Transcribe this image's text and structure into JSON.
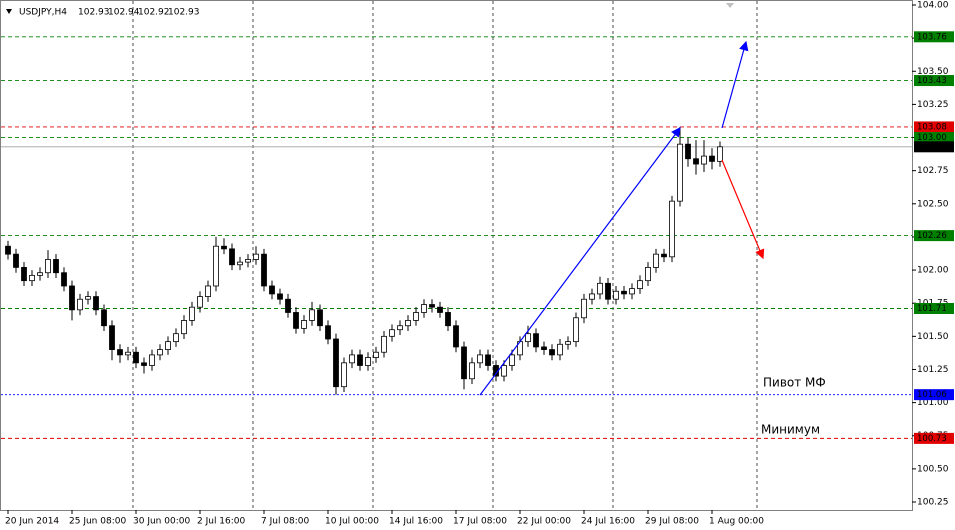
{
  "chart_data": {
    "type": "candlestick",
    "title": "USDJPY,H4",
    "header_values": [
      102.93,
      102.94,
      102.92,
      102.93
    ],
    "annotations": [
      "Пивот МФ",
      "Минимум"
    ],
    "bull_color": "#ffffff",
    "bear_color": "#000000",
    "open": [
      102.18,
      102.12,
      102.02,
      101.92,
      101.96,
      101.98,
      102.08,
      101.98,
      101.88,
      101.7,
      101.78,
      101.8,
      101.7,
      101.58,
      101.4,
      101.36,
      101.38,
      101.3,
      101.28,
      101.36,
      101.4,
      101.46,
      101.52,
      101.62,
      101.72,
      101.8,
      101.88,
      102.18,
      102.16,
      102.04,
      102.06,
      102.08,
      102.12,
      101.88,
      101.82,
      101.78,
      101.68,
      101.56,
      101.62,
      101.7,
      101.58,
      101.48,
      101.12,
      101.3,
      101.36,
      101.28,
      101.34,
      101.38,
      101.5,
      101.55,
      101.58,
      101.62,
      101.68,
      101.74,
      101.72,
      101.68,
      101.58,
      101.42,
      101.18,
      101.3,
      101.36,
      101.28,
      101.2,
      101.28,
      101.36,
      101.46,
      101.52,
      101.42,
      101.4,
      101.36,
      101.44,
      101.46,
      101.64,
      101.78,
      101.82,
      101.9,
      101.78,
      101.84,
      101.82,
      101.86,
      101.92,
      102.02,
      102.12,
      102.1,
      102.52,
      102.95,
      102.84,
      102.8,
      102.86,
      102.82
    ],
    "high": [
      102.22,
      102.16,
      102.06,
      102.0,
      102.02,
      102.15,
      102.12,
      102.02,
      101.92,
      101.82,
      101.84,
      101.84,
      101.74,
      101.62,
      101.44,
      101.42,
      101.42,
      101.34,
      101.4,
      101.44,
      101.5,
      101.56,
      101.66,
      101.76,
      101.84,
      101.92,
      102.25,
      102.24,
      102.2,
      102.1,
      102.12,
      102.18,
      102.16,
      101.92,
      101.86,
      101.82,
      101.72,
      101.66,
      101.76,
      101.74,
      101.62,
      101.52,
      101.34,
      101.4,
      101.4,
      101.38,
      101.42,
      101.54,
      101.59,
      101.62,
      101.66,
      101.72,
      101.78,
      101.78,
      101.76,
      101.72,
      101.62,
      101.46,
      101.34,
      101.4,
      101.4,
      101.32,
      101.32,
      101.4,
      101.5,
      101.58,
      101.56,
      101.46,
      101.44,
      101.48,
      101.5,
      101.68,
      101.82,
      101.86,
      101.95,
      101.94,
      101.88,
      101.88,
      101.9,
      101.96,
      102.06,
      102.16,
      102.16,
      102.56,
      103.08,
      103.0,
      102.98,
      102.98,
      102.92,
      102.97
    ],
    "low": [
      102.08,
      101.98,
      101.88,
      101.88,
      101.92,
      101.94,
      101.94,
      101.84,
      101.62,
      101.66,
      101.74,
      101.66,
      101.54,
      101.32,
      101.3,
      101.32,
      101.26,
      101.22,
      101.24,
      101.32,
      101.36,
      101.42,
      101.48,
      101.58,
      101.68,
      101.76,
      101.84,
      102.12,
      102.0,
      102.0,
      102.02,
      102.04,
      101.84,
      101.78,
      101.74,
      101.64,
      101.52,
      101.52,
      101.58,
      101.54,
      101.44,
      101.06,
      101.08,
      101.26,
      101.24,
      101.24,
      101.3,
      101.34,
      101.46,
      101.51,
      101.54,
      101.58,
      101.64,
      101.68,
      101.64,
      101.54,
      101.38,
      101.1,
      101.14,
      101.26,
      101.24,
      101.16,
      101.16,
      101.24,
      101.32,
      101.42,
      101.38,
      101.36,
      101.32,
      101.32,
      101.4,
      101.42,
      101.6,
      101.74,
      101.78,
      101.74,
      101.74,
      101.78,
      101.78,
      101.82,
      101.88,
      101.98,
      102.06,
      102.06,
      102.48,
      102.78,
      102.72,
      102.74,
      102.76,
      102.78
    ],
    "close": [
      102.12,
      102.02,
      101.92,
      101.96,
      101.98,
      102.08,
      101.98,
      101.88,
      101.7,
      101.78,
      101.8,
      101.7,
      101.58,
      101.4,
      101.36,
      101.38,
      101.3,
      101.28,
      101.36,
      101.4,
      101.46,
      101.52,
      101.62,
      101.72,
      101.8,
      101.88,
      102.18,
      102.16,
      102.04,
      102.06,
      102.08,
      102.12,
      101.88,
      101.82,
      101.78,
      101.68,
      101.56,
      101.62,
      101.7,
      101.58,
      101.48,
      101.12,
      101.3,
      101.36,
      101.28,
      101.34,
      101.38,
      101.5,
      101.55,
      101.58,
      101.62,
      101.68,
      101.74,
      101.72,
      101.68,
      101.58,
      101.42,
      101.18,
      101.3,
      101.36,
      101.28,
      101.2,
      101.28,
      101.36,
      101.46,
      101.52,
      101.42,
      101.4,
      101.36,
      101.44,
      101.46,
      101.64,
      101.78,
      101.82,
      101.9,
      101.78,
      101.84,
      101.82,
      101.86,
      101.92,
      102.02,
      102.12,
      102.1,
      102.52,
      102.95,
      102.84,
      102.8,
      102.86,
      102.82,
      102.93
    ],
    "xticks": [
      {
        "value": 0,
        "label": "20 Jun 2014"
      },
      {
        "value": 8,
        "label": "25 Jun 08:00"
      },
      {
        "value": 16,
        "label": "30 Jun 00:00"
      },
      {
        "value": 24,
        "label": "2 Jul 16:00"
      },
      {
        "value": 32,
        "label": "7 Jul 08:00"
      },
      {
        "value": 40,
        "label": "10 Jul 00:00"
      },
      {
        "value": 48,
        "label": "14 Jul 16:00"
      },
      {
        "value": 56,
        "label": "17 Jul 08:00"
      },
      {
        "value": 64,
        "label": "22 Jul 00:00"
      },
      {
        "value": 72,
        "label": "24 Jul 16:00"
      },
      {
        "value": 80,
        "label": "29 Jul 08:00"
      },
      {
        "value": 88,
        "label": "1 Aug 00:00"
      }
    ],
    "ylim": [
      100.25,
      104.0
    ],
    "yticks": [
      {
        "value": 104.0,
        "label": "104.00"
      },
      {
        "value": 103.75,
        "label": "103.75"
      },
      {
        "value": 103.5,
        "label": "103.50"
      },
      {
        "value": 103.25,
        "label": "103.25"
      },
      {
        "value": 103.0,
        "label": "103.00"
      },
      {
        "value": 102.75,
        "label": "102.75"
      },
      {
        "value": 102.5,
        "label": "102.50"
      },
      {
        "value": 102.25,
        "label": "102.25"
      },
      {
        "value": 102.0,
        "label": "102.00"
      },
      {
        "value": 101.75,
        "label": "101.75"
      },
      {
        "value": 101.5,
        "label": "101.50"
      },
      {
        "value": 101.25,
        "label": "101.25"
      },
      {
        "value": 101.0,
        "label": "101.00"
      },
      {
        "value": 100.75,
        "label": "100.75"
      },
      {
        "value": 100.5,
        "label": "100.50"
      },
      {
        "value": 100.25,
        "label": "100.25"
      }
    ],
    "levels": [
      {
        "value": 103.76,
        "label": "103.76",
        "color": "#008000",
        "line": "dashed"
      },
      {
        "value": 103.43,
        "label": "103.43",
        "color": "#008000",
        "line": "dashed"
      },
      {
        "value": 103.08,
        "label": "103.08",
        "color": "#e00000",
        "line": "dashed"
      },
      {
        "value": 103.0,
        "label": "103.00",
        "color": "#008000",
        "line": "dashed"
      },
      {
        "value": 102.93,
        "label": "102.93",
        "color": "#000000",
        "line": "solid"
      },
      {
        "value": 102.26,
        "label": "102.26",
        "color": "#008000",
        "line": "dashed"
      },
      {
        "value": 101.71,
        "label": "101.71",
        "color": "#008000",
        "line": "dashed"
      },
      {
        "value": 101.06,
        "label": "101.06",
        "color": "#0000ff",
        "line": "dotted"
      },
      {
        "value": 100.73,
        "label": "100.73",
        "color": "#e00000",
        "line": "dashed"
      }
    ]
  }
}
